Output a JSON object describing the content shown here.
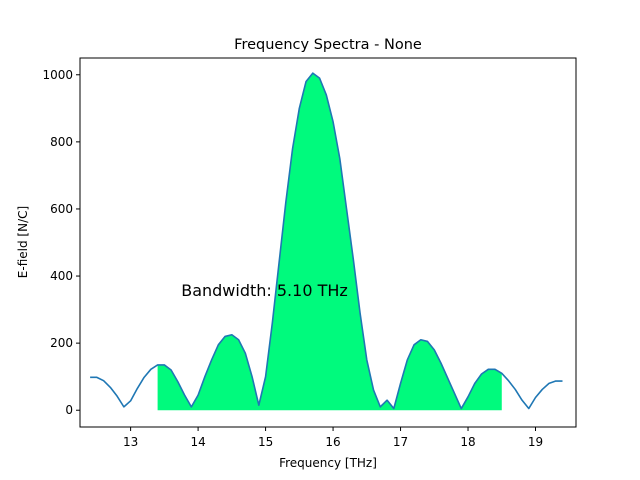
{
  "chart_data": {
    "type": "line",
    "title": "Frequency Spectra - None",
    "xlabel": "Frequency [THz]",
    "ylabel": "E-field [N/C]",
    "xlim": [
      12.25,
      19.6
    ],
    "ylim": [
      -50,
      1050
    ],
    "xticks": [
      13,
      14,
      15,
      16,
      17,
      18,
      19
    ],
    "yticks": [
      0,
      200,
      400,
      600,
      800,
      1000
    ],
    "grid": false,
    "annotation": {
      "text": "Bandwidth: 5.10 THz",
      "x": 13.75,
      "y": 340
    },
    "fill_range": [
      13.4,
      18.5
    ],
    "colors": {
      "line": "#1f77b4",
      "fill": "#00fa7d"
    },
    "series": [
      {
        "x": [
          12.4,
          12.5,
          12.6,
          12.7,
          12.8,
          12.9,
          13.0,
          13.1,
          13.2,
          13.3,
          13.4,
          13.5,
          13.6,
          13.7,
          13.8,
          13.9,
          14.0,
          14.1,
          14.2,
          14.3,
          14.4,
          14.5,
          14.6,
          14.7,
          14.8,
          14.9,
          15.0,
          15.1,
          15.2,
          15.3,
          15.4,
          15.5,
          15.6,
          15.7,
          15.8,
          15.9,
          16.0,
          16.1,
          16.2,
          16.3,
          16.4,
          16.5,
          16.6,
          16.7,
          16.8,
          16.9,
          17.0,
          17.1,
          17.2,
          17.3,
          17.4,
          17.5,
          17.6,
          17.7,
          17.8,
          17.9,
          18.0,
          18.1,
          18.2,
          18.3,
          18.4,
          18.5,
          18.6,
          18.7,
          18.8,
          18.9,
          19.0,
          19.1,
          19.2,
          19.3,
          19.4
        ],
        "y": [
          98,
          98,
          88,
          68,
          42,
          10,
          28,
          65,
          98,
          122,
          135,
          135,
          120,
          85,
          45,
          10,
          45,
          100,
          150,
          195,
          220,
          225,
          210,
          170,
          100,
          15,
          100,
          260,
          440,
          620,
          780,
          900,
          980,
          1005,
          990,
          940,
          860,
          750,
          600,
          450,
          290,
          150,
          60,
          10,
          30,
          5,
          80,
          150,
          195,
          210,
          205,
          180,
          140,
          95,
          50,
          5,
          40,
          80,
          108,
          122,
          122,
          110,
          88,
          62,
          30,
          5,
          38,
          62,
          80,
          87,
          87
        ]
      }
    ]
  }
}
